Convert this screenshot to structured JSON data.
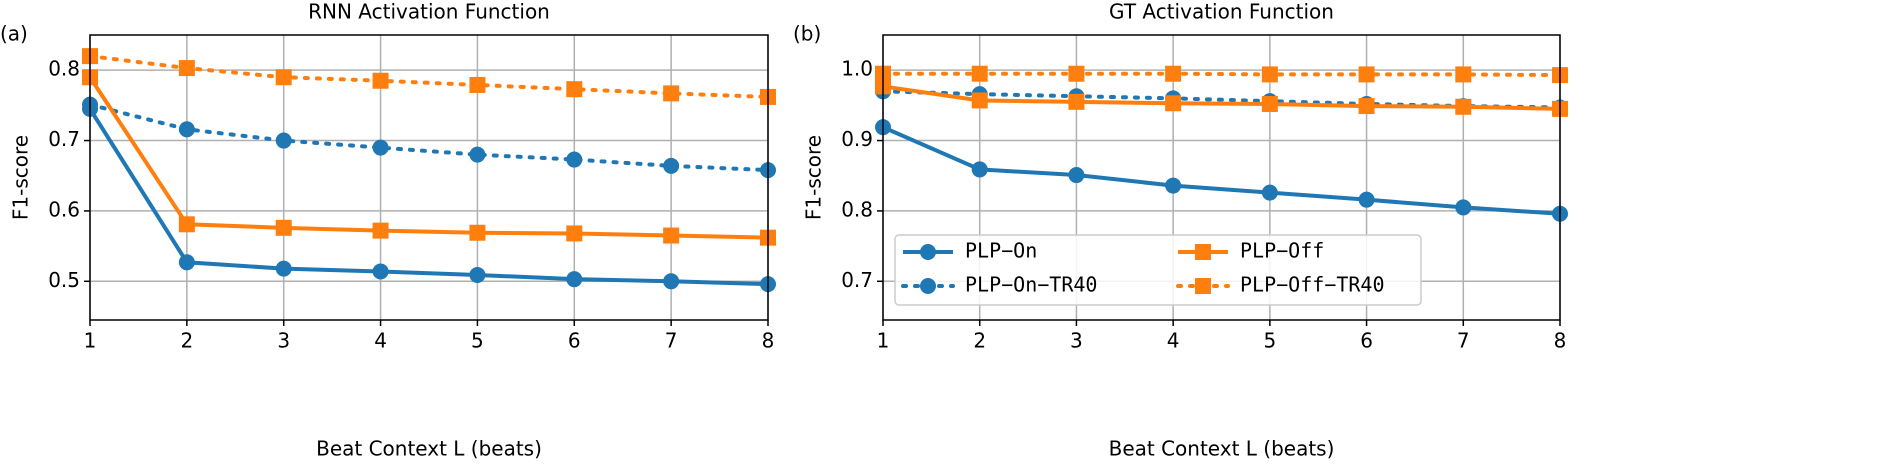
{
  "chart_data": [
    {
      "type": "line",
      "panel_label": "(a)",
      "title": "RNN Activation Function",
      "xlabel": "Beat Context L (beats)",
      "ylabel": "F1-score",
      "x": [
        1,
        2,
        3,
        4,
        5,
        6,
        7,
        8
      ],
      "xlim": [
        1,
        8
      ],
      "xticks": [
        1,
        2,
        3,
        4,
        5,
        6,
        7,
        8
      ],
      "ylim": [
        0.445,
        0.85
      ],
      "yticks": [
        0.5,
        0.6,
        0.7,
        0.8
      ],
      "grid": true,
      "series": [
        {
          "color": "#1f77b4",
          "style": "solid",
          "marker": "circle",
          "values": [
            0.745,
            0.527,
            0.518,
            0.514,
            0.509,
            0.503,
            0.5,
            0.496
          ]
        },
        {
          "color": "#1f77b4",
          "style": "dotted",
          "marker": "circle",
          "values": [
            0.751,
            0.716,
            0.7,
            0.69,
            0.68,
            0.673,
            0.664,
            0.658
          ]
        },
        {
          "color": "#ff7f0e",
          "style": "solid",
          "marker": "square",
          "values": [
            0.79,
            0.581,
            0.576,
            0.572,
            0.569,
            0.568,
            0.565,
            0.562
          ]
        },
        {
          "color": "#ff7f0e",
          "style": "dotted",
          "marker": "square",
          "values": [
            0.82,
            0.803,
            0.79,
            0.785,
            0.779,
            0.773,
            0.767,
            0.762
          ]
        }
      ]
    },
    {
      "type": "line",
      "panel_label": "(b)",
      "title": "GT Activation Function",
      "xlabel": "Beat Context L (beats)",
      "ylabel": "F1-score",
      "x": [
        1,
        2,
        3,
        4,
        5,
        6,
        7,
        8
      ],
      "xlim": [
        1,
        8
      ],
      "xticks": [
        1,
        2,
        3,
        4,
        5,
        6,
        7,
        8
      ],
      "ylim": [
        0.645,
        1.05
      ],
      "yticks": [
        0.7,
        0.8,
        0.9,
        {
          "value": 1,
          "label": "1.0"
        }
      ],
      "grid": true,
      "legend": "lower left",
      "series": [
        {
          "name": "PLP−On",
          "color": "#1f77b4",
          "style": "solid",
          "marker": "circle",
          "values": [
            0.919,
            0.859,
            0.851,
            0.836,
            0.826,
            0.816,
            0.805,
            0.796
          ]
        },
        {
          "name": "PLP−On−TR40",
          "color": "#1f77b4",
          "style": "dotted",
          "marker": "circle",
          "values": [
            0.97,
            0.966,
            0.963,
            0.96,
            0.956,
            0.952,
            0.949,
            0.947
          ]
        },
        {
          "name": "PLP−Off",
          "color": "#ff7f0e",
          "style": "solid",
          "marker": "square",
          "values": [
            0.977,
            0.957,
            0.955,
            0.953,
            0.952,
            0.949,
            0.948,
            0.945
          ]
        },
        {
          "name": "PLP−Off−TR40",
          "color": "#ff7f0e",
          "style": "dotted",
          "marker": "square",
          "values": [
            0.995,
            0.995,
            0.995,
            0.995,
            0.994,
            0.994,
            0.994,
            0.993
          ]
        }
      ]
    }
  ]
}
